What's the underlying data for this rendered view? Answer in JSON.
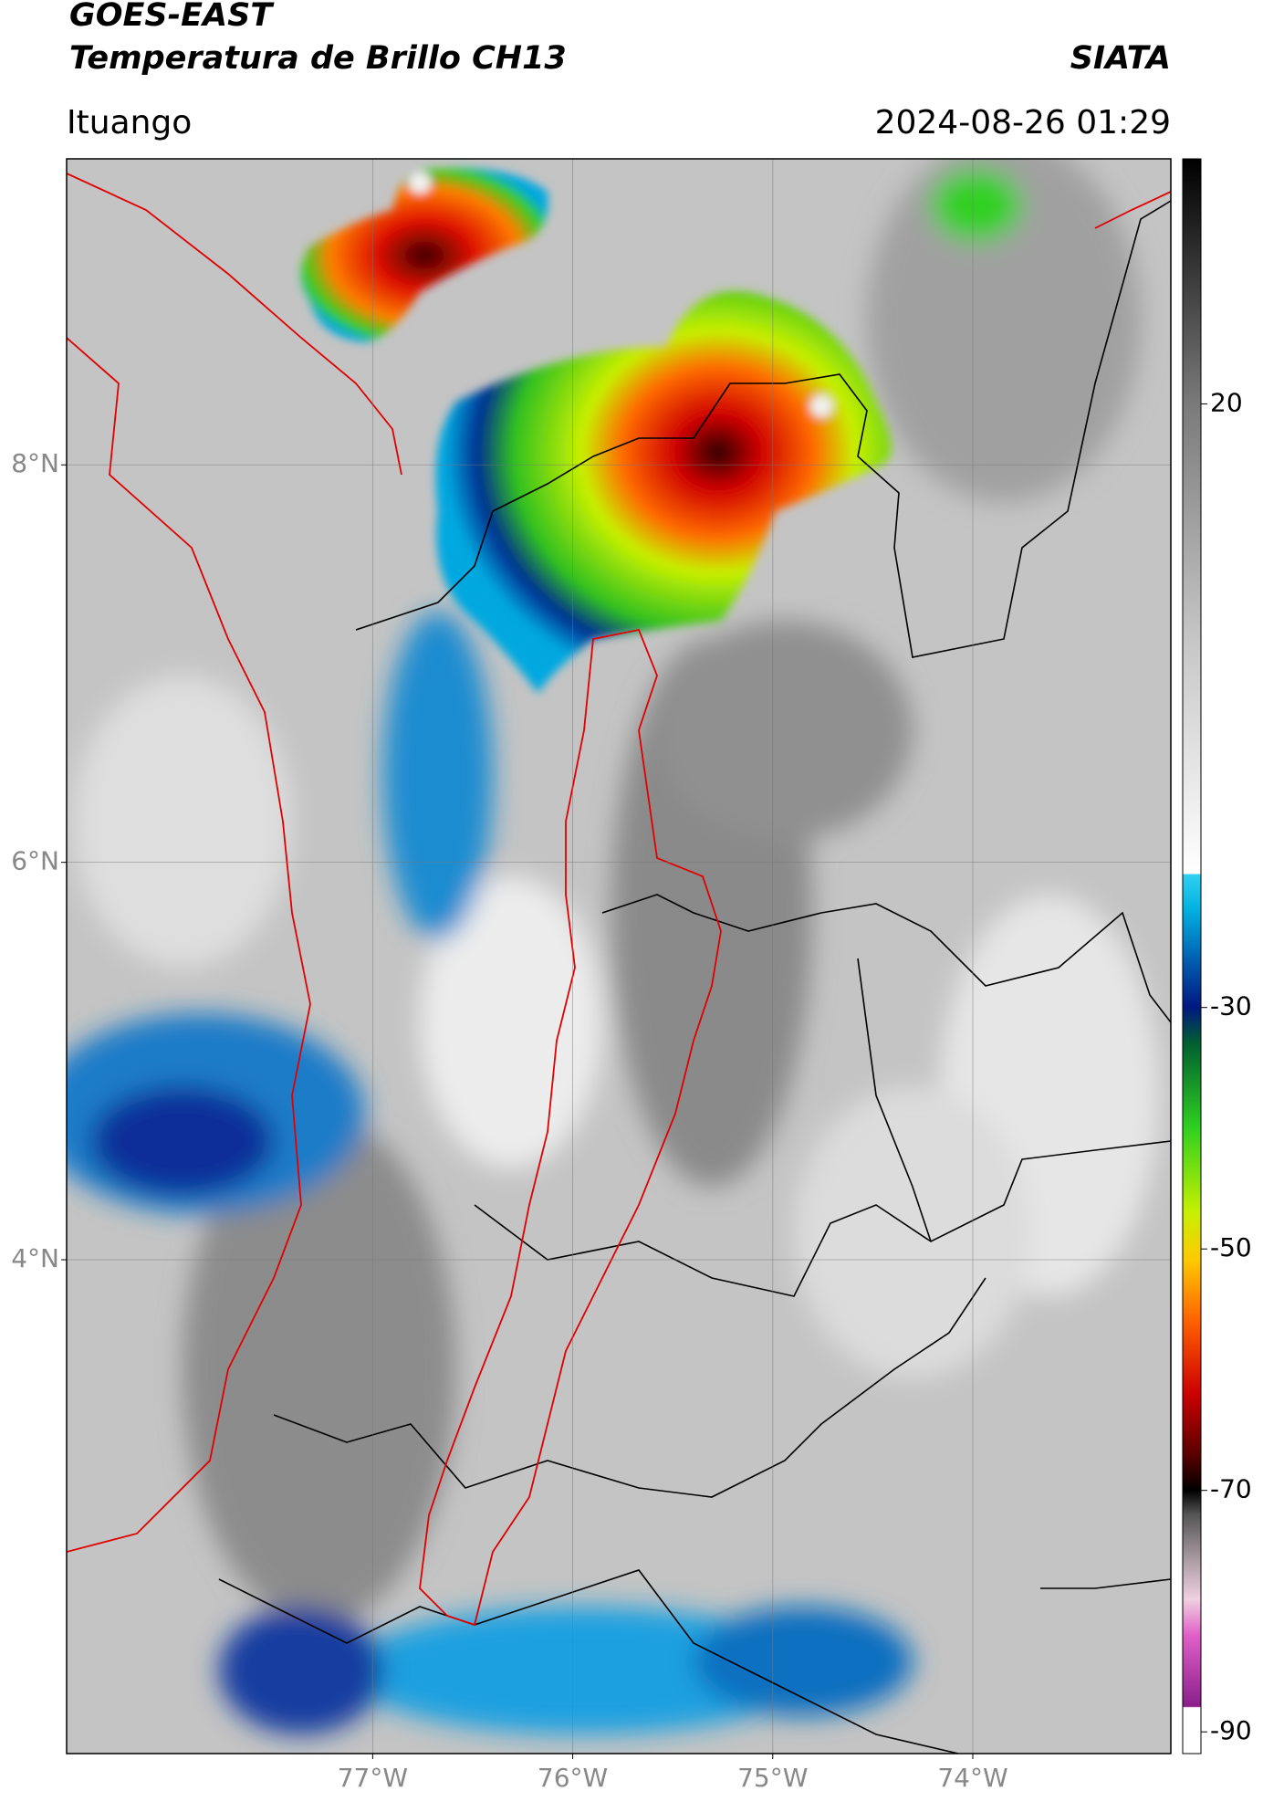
{
  "header": {
    "title": "GOES-EAST",
    "subtitle": "Temperatura de Brillo CH13",
    "brand": "SIATA",
    "location": "Ituango",
    "datetime": "2024-08-26 01:29"
  },
  "map": {
    "xlim": [
      -78.53,
      -73.01
    ],
    "ylim": [
      1.515,
      9.54
    ],
    "xticks": [
      {
        "value": -77,
        "label": "77°W"
      },
      {
        "value": -76,
        "label": "76°W"
      },
      {
        "value": -75,
        "label": "75°W"
      },
      {
        "value": -74,
        "label": "74°W"
      }
    ],
    "yticks": [
      {
        "value": 8,
        "label": "8°N"
      },
      {
        "value": 6,
        "label": "6°N"
      },
      {
        "value": 4,
        "label": "4°N"
      }
    ],
    "grid": true
  },
  "colorbar": {
    "lim": [
      -91.8,
      40.3
    ],
    "ticks": [
      20,
      -30,
      -50,
      -70,
      -90
    ],
    "colorscale": [
      [
        -91.8,
        "#ffffff"
      ],
      [
        -88,
        "#ffffff"
      ],
      [
        -87.9,
        "#8a1f8a"
      ],
      [
        -82,
        "#e060c8"
      ],
      [
        -79,
        "#f0d0e0"
      ],
      [
        -76,
        "#b0a0a8"
      ],
      [
        -72,
        "#555555"
      ],
      [
        -70,
        "#000000"
      ],
      [
        -67,
        "#5a0000"
      ],
      [
        -62,
        "#cc0000"
      ],
      [
        -56,
        "#ff6000"
      ],
      [
        -51,
        "#ffc800"
      ],
      [
        -47,
        "#c8f000"
      ],
      [
        -40,
        "#30d020"
      ],
      [
        -33,
        "#006030"
      ],
      [
        -30,
        "#001880"
      ],
      [
        -26,
        "#0060b0"
      ],
      [
        -22,
        "#00b0e0"
      ],
      [
        -19,
        "#30d0f0"
      ],
      [
        -18.9,
        "#ffffff"
      ],
      [
        0,
        "#c8c8c8"
      ],
      [
        20,
        "#7a7a7a"
      ],
      [
        40.3,
        "#000000"
      ]
    ]
  }
}
